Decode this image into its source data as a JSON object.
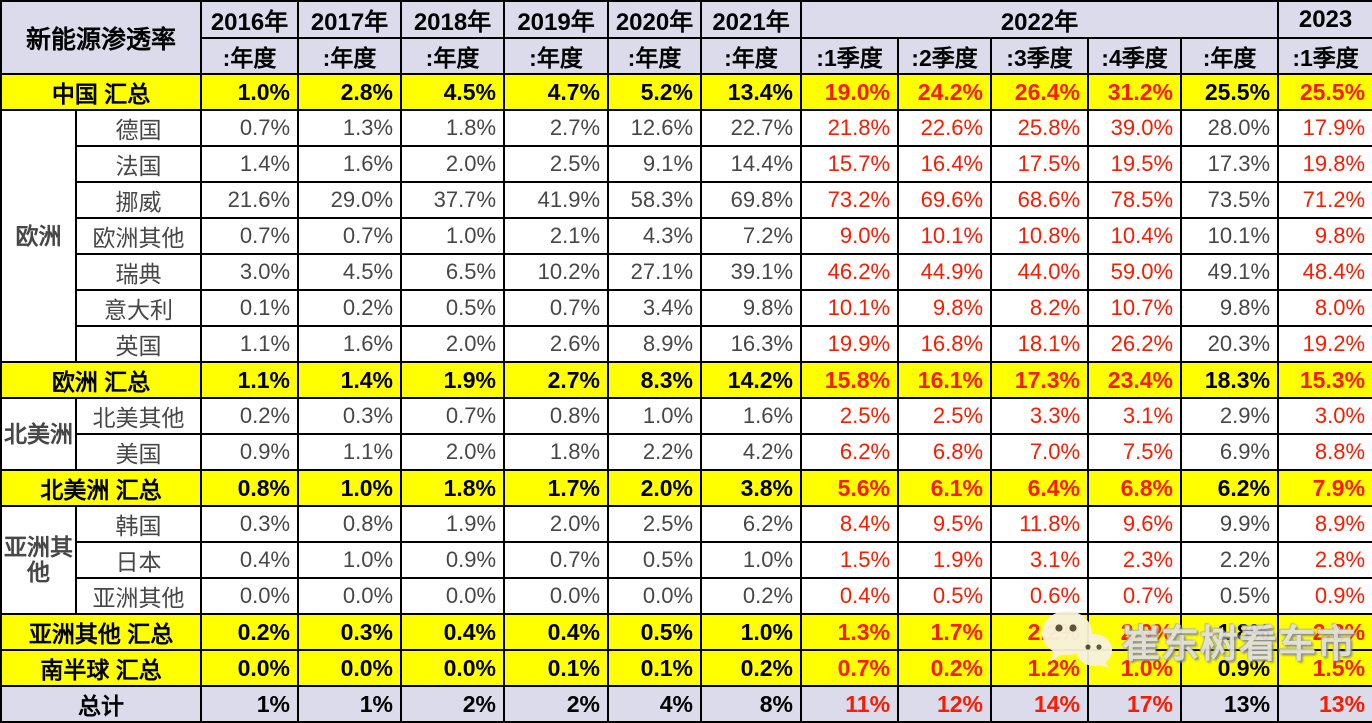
{
  "chart_data": {
    "type": "table",
    "title": "新能源渗透率",
    "column_groups": [
      {
        "label": "2016年",
        "subs": [
          ":年度"
        ]
      },
      {
        "label": "2017年",
        "subs": [
          ":年度"
        ]
      },
      {
        "label": "2018年",
        "subs": [
          ":年度"
        ]
      },
      {
        "label": "2019年",
        "subs": [
          ":年度"
        ]
      },
      {
        "label": "2020年",
        "subs": [
          ":年度"
        ]
      },
      {
        "label": "2021年",
        "subs": [
          ":年度"
        ]
      },
      {
        "label": "2022年",
        "subs": [
          ":1季度",
          ":2季度",
          ":3季度",
          ":4季度",
          ":年度"
        ]
      },
      {
        "label": "2023",
        "subs": [
          ":1季度"
        ]
      }
    ],
    "columns_flat": [
      "2016年:年度",
      "2017年:年度",
      "2018年:年度",
      "2019年:年度",
      "2020年:年度",
      "2021年:年度",
      "2022年:1季度",
      "2022年:2季度",
      "2022年:3季度",
      "2022年:4季度",
      "2022年:年度",
      "2023:1季度"
    ],
    "red_columns": [
      6,
      7,
      8,
      9,
      11
    ],
    "rows": [
      {
        "kind": "summary",
        "label": "中国 汇总",
        "values": [
          "1.0%",
          "2.8%",
          "4.5%",
          "4.7%",
          "5.2%",
          "13.4%",
          "19.0%",
          "24.2%",
          "26.4%",
          "31.2%",
          "25.5%",
          "25.5%"
        ]
      },
      {
        "kind": "country",
        "group": "欧洲",
        "span": 7,
        "label": "德国",
        "values": [
          "0.7%",
          "1.3%",
          "1.8%",
          "2.7%",
          "12.6%",
          "22.7%",
          "21.8%",
          "22.6%",
          "25.8%",
          "39.0%",
          "28.0%",
          "17.9%"
        ]
      },
      {
        "kind": "country",
        "label": "法国",
        "values": [
          "1.4%",
          "1.6%",
          "2.0%",
          "2.5%",
          "9.1%",
          "14.4%",
          "15.7%",
          "16.4%",
          "17.5%",
          "19.5%",
          "17.3%",
          "19.8%"
        ]
      },
      {
        "kind": "country",
        "label": "挪威",
        "values": [
          "21.6%",
          "29.0%",
          "37.7%",
          "41.9%",
          "58.3%",
          "69.8%",
          "73.2%",
          "69.6%",
          "68.6%",
          "78.5%",
          "73.5%",
          "71.2%"
        ]
      },
      {
        "kind": "country",
        "label": "欧洲其他",
        "values": [
          "0.7%",
          "0.7%",
          "1.0%",
          "2.1%",
          "4.3%",
          "7.2%",
          "9.0%",
          "10.1%",
          "10.8%",
          "10.4%",
          "10.1%",
          "9.8%"
        ]
      },
      {
        "kind": "country",
        "label": "瑞典",
        "values": [
          "3.0%",
          "4.5%",
          "6.5%",
          "10.2%",
          "27.1%",
          "39.1%",
          "46.2%",
          "44.9%",
          "44.0%",
          "59.0%",
          "49.1%",
          "48.4%"
        ]
      },
      {
        "kind": "country",
        "label": "意大利",
        "values": [
          "0.1%",
          "0.2%",
          "0.5%",
          "0.7%",
          "3.4%",
          "9.8%",
          "10.1%",
          "9.8%",
          "8.2%",
          "10.7%",
          "9.8%",
          "8.0%"
        ]
      },
      {
        "kind": "country",
        "label": "英国",
        "values": [
          "1.1%",
          "1.6%",
          "2.0%",
          "2.6%",
          "8.9%",
          "16.3%",
          "19.9%",
          "16.8%",
          "18.1%",
          "26.2%",
          "20.3%",
          "19.2%"
        ]
      },
      {
        "kind": "summary",
        "label": "欧洲 汇总",
        "values": [
          "1.1%",
          "1.4%",
          "1.9%",
          "2.7%",
          "8.3%",
          "14.2%",
          "15.8%",
          "16.1%",
          "17.3%",
          "23.4%",
          "18.3%",
          "15.3%"
        ]
      },
      {
        "kind": "country",
        "group": "北美洲",
        "span": 2,
        "label": "北美其他",
        "values": [
          "0.2%",
          "0.3%",
          "0.7%",
          "0.8%",
          "1.0%",
          "1.6%",
          "2.5%",
          "2.5%",
          "3.3%",
          "3.1%",
          "2.9%",
          "3.0%"
        ]
      },
      {
        "kind": "country",
        "label": "美国",
        "values": [
          "0.9%",
          "1.1%",
          "2.0%",
          "1.8%",
          "2.2%",
          "4.2%",
          "6.2%",
          "6.8%",
          "7.0%",
          "7.5%",
          "6.9%",
          "8.8%"
        ]
      },
      {
        "kind": "summary",
        "label": "北美洲 汇总",
        "values": [
          "0.8%",
          "1.0%",
          "1.8%",
          "1.7%",
          "2.0%",
          "3.8%",
          "5.6%",
          "6.1%",
          "6.4%",
          "6.8%",
          "6.2%",
          "7.9%"
        ]
      },
      {
        "kind": "country",
        "group": "亚洲其他",
        "span": 3,
        "label": "韩国",
        "values": [
          "0.3%",
          "0.8%",
          "1.9%",
          "2.0%",
          "2.5%",
          "6.2%",
          "8.4%",
          "9.5%",
          "11.8%",
          "9.6%",
          "9.9%",
          "8.9%"
        ]
      },
      {
        "kind": "country",
        "label": "日本",
        "values": [
          "0.4%",
          "1.0%",
          "0.9%",
          "0.7%",
          "0.5%",
          "1.0%",
          "1.5%",
          "1.9%",
          "3.1%",
          "2.3%",
          "2.2%",
          "2.8%"
        ]
      },
      {
        "kind": "country",
        "label": "亚洲其他",
        "values": [
          "0.0%",
          "0.0%",
          "0.0%",
          "0.0%",
          "0.0%",
          "0.2%",
          "0.4%",
          "0.5%",
          "0.6%",
          "0.7%",
          "0.5%",
          "0.9%"
        ]
      },
      {
        "kind": "summary",
        "label": "亚洲其他 汇总",
        "values": [
          "0.2%",
          "0.3%",
          "0.4%",
          "0.4%",
          "0.5%",
          "1.0%",
          "1.3%",
          "1.7%",
          "2.2%",
          "2.0%",
          "1.8%",
          "2.2%"
        ]
      },
      {
        "kind": "summary",
        "label": "南半球 汇总",
        "values": [
          "0.0%",
          "0.0%",
          "0.0%",
          "0.1%",
          "0.1%",
          "0.2%",
          "0.7%",
          "0.2%",
          "1.2%",
          "1.0%",
          "0.9%",
          "1.5%"
        ]
      },
      {
        "kind": "total",
        "label": "总计",
        "values": [
          "1%",
          "1%",
          "2%",
          "2%",
          "4%",
          "8%",
          "11%",
          "12%",
          "14%",
          "17%",
          "13%",
          "13%"
        ]
      }
    ]
  },
  "watermark": {
    "text": "崔东树看车市",
    "icon": "wechat-logo"
  },
  "colors": {
    "highlight_bg": "#FFFF00",
    "header_bg": "#DBDBEC",
    "red_text": "#F81C00",
    "body_text": "#474747",
    "border": "#000000",
    "watermark_text": "#DFDFDF"
  }
}
